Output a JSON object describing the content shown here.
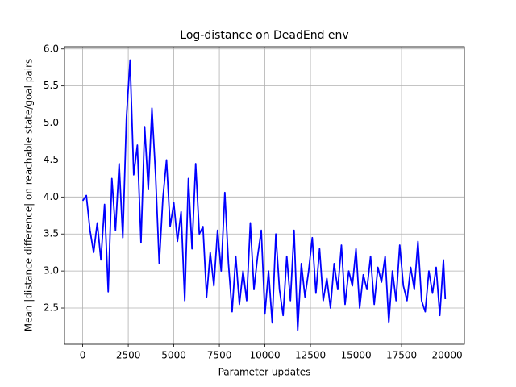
{
  "chart_data": {
    "type": "line",
    "title": "Log-distance on DeadEnd env",
    "x_label": "Parameter updates",
    "y_label": "Mean |distance difference| on reachable state/goal pairs",
    "x": [
      0,
      200,
      400,
      600,
      800,
      1000,
      1200,
      1400,
      1600,
      1800,
      2000,
      2200,
      2400,
      2600,
      2800,
      3000,
      3200,
      3400,
      3600,
      3800,
      4000,
      4200,
      4400,
      4600,
      4800,
      5000,
      5200,
      5400,
      5600,
      5800,
      6000,
      6200,
      6400,
      6600,
      6800,
      7000,
      7200,
      7400,
      7600,
      7800,
      8000,
      8200,
      8400,
      8600,
      8800,
      9000,
      9200,
      9400,
      9600,
      9800,
      10000,
      10200,
      10400,
      10600,
      10800,
      11000,
      11200,
      11400,
      11600,
      11800,
      12000,
      12200,
      12400,
      12600,
      12800,
      13000,
      13200,
      13400,
      13600,
      13800,
      14000,
      14200,
      14400,
      14600,
      14800,
      15000,
      15200,
      15400,
      15600,
      15800,
      16000,
      16200,
      16400,
      16600,
      16800,
      17000,
      17200,
      17400,
      17600,
      17800,
      18000,
      18200,
      18400,
      18600,
      18800,
      19000,
      19200,
      19400,
      19600,
      19800,
      19900
    ],
    "series": [
      {
        "color": "#0000ff",
        "values": [
          3.95,
          4.02,
          3.55,
          3.25,
          3.65,
          3.15,
          3.9,
          2.72,
          4.25,
          3.55,
          4.45,
          3.45,
          5.07,
          5.85,
          4.3,
          4.7,
          3.38,
          4.95,
          4.1,
          5.2,
          4.3,
          3.1,
          3.98,
          4.5,
          3.6,
          3.92,
          3.4,
          3.8,
          2.6,
          4.25,
          3.3,
          4.45,
          3.5,
          3.6,
          2.65,
          3.25,
          2.8,
          3.55,
          3.0,
          4.06,
          3.1,
          2.45,
          3.2,
          2.55,
          3.0,
          2.6,
          3.65,
          2.75,
          3.2,
          3.55,
          2.42,
          3.0,
          2.3,
          3.5,
          2.75,
          2.4,
          3.2,
          2.6,
          3.55,
          2.2,
          3.1,
          2.65,
          3.0,
          3.45,
          2.7,
          3.3,
          2.6,
          2.9,
          2.5,
          3.1,
          2.75,
          3.35,
          2.55,
          3.0,
          2.8,
          3.3,
          2.5,
          2.95,
          2.75,
          3.2,
          2.55,
          3.05,
          2.85,
          3.2,
          2.3,
          3.0,
          2.6,
          3.35,
          2.8,
          2.6,
          3.05,
          2.75,
          3.4,
          2.6,
          2.45,
          3.0,
          2.7,
          3.05,
          2.4,
          3.15,
          2.62
        ]
      }
    ],
    "xlim": [
      -1000,
      20950
    ],
    "ylim": [
      2.01,
      6.03
    ],
    "xticks": [
      0,
      2500,
      5000,
      7500,
      10000,
      12500,
      15000,
      17500,
      20000
    ],
    "yticks": [
      2.5,
      {
        "value": 3,
        "label": "3.0"
      },
      3.5,
      {
        "value": 4,
        "label": "4.0"
      },
      4.5,
      {
        "value": 5,
        "label": "5.0"
      },
      5.5,
      {
        "value": 6,
        "label": "6.0"
      }
    ],
    "grid": true
  }
}
